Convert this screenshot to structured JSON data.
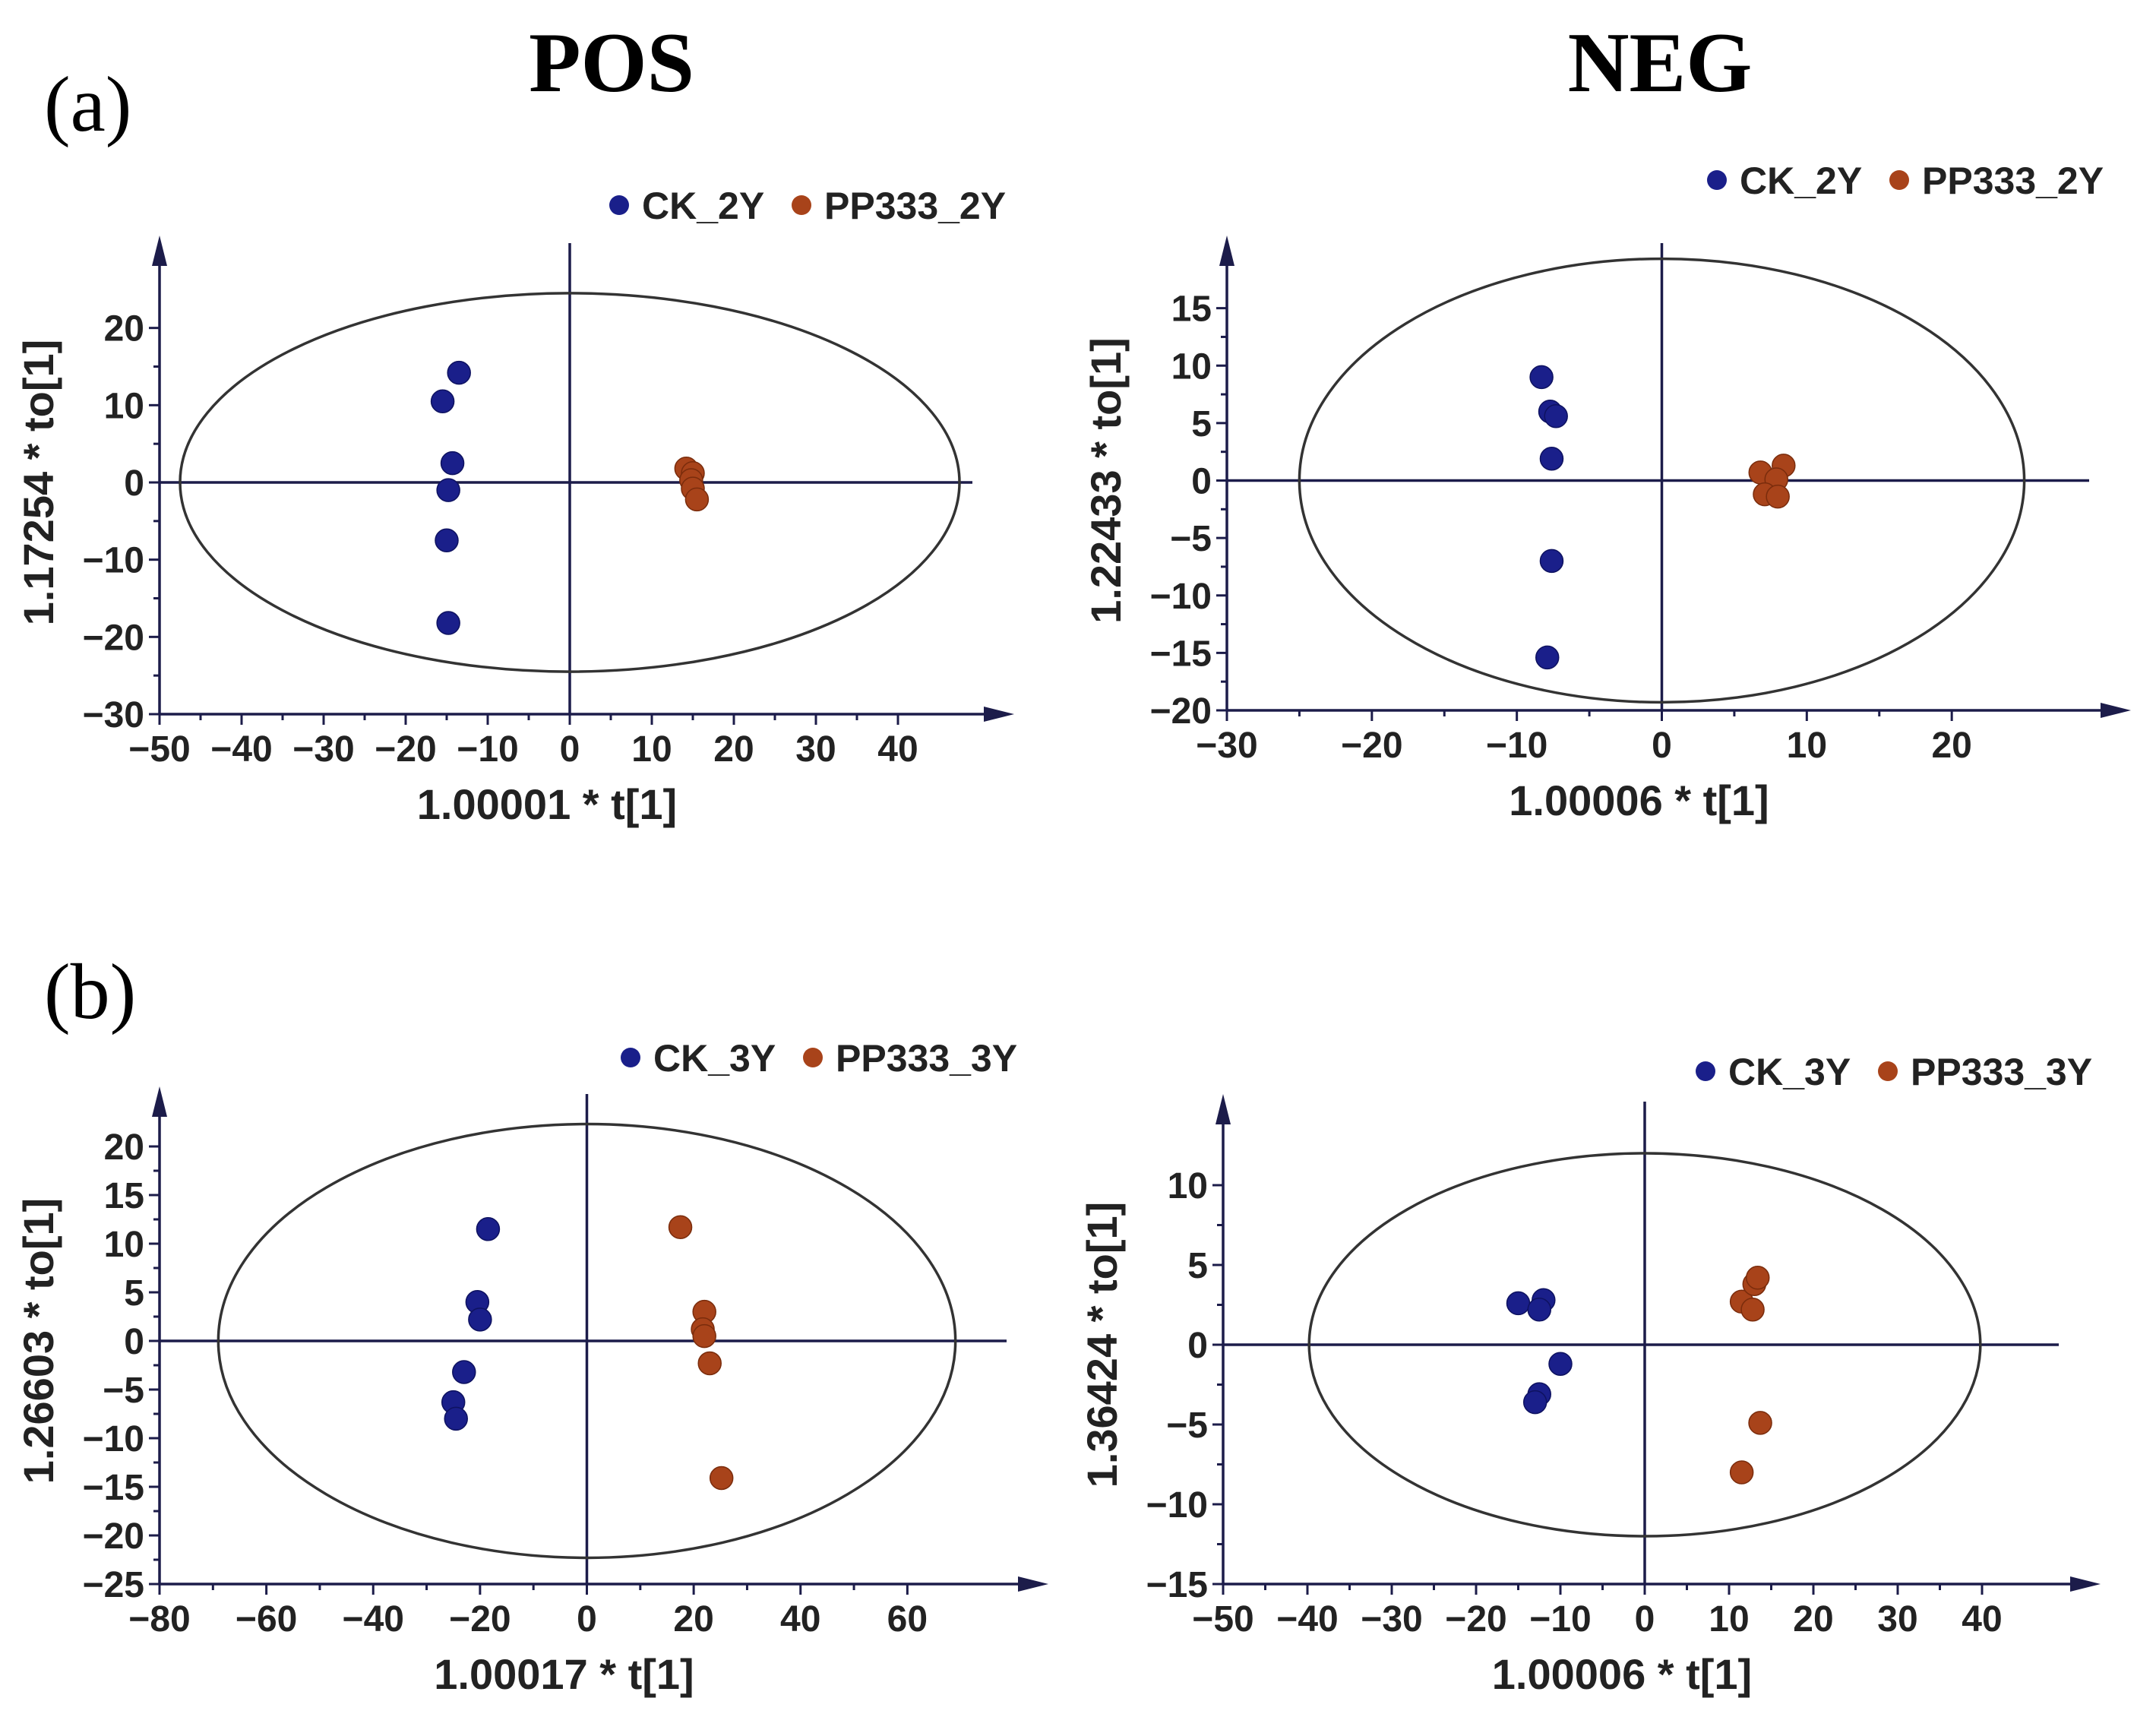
{
  "figure": {
    "column_titles": [
      "POS",
      "NEG"
    ],
    "panel_labels": [
      "(a)",
      "(b)"
    ]
  },
  "colors": {
    "CK": "#1a1f8a",
    "PP333": "#a8431a",
    "axis": "#1c1c4a"
  },
  "chart_data": [
    {
      "type": "scatter",
      "panel": "(a)",
      "mode": "POS",
      "xlabel": "1.00001 * t[1]",
      "ylabel": "1.17254 * to[1]",
      "xlim": [
        -50,
        50
      ],
      "ylim": [
        -30,
        30
      ],
      "xticks": [
        -50,
        -40,
        -30,
        -20,
        -10,
        0,
        10,
        20,
        30,
        40
      ],
      "yticks": [
        -30,
        -20,
        -10,
        0,
        10,
        20
      ],
      "ellipse": {
        "rx": 47.5,
        "ry": 24.5
      },
      "series": [
        {
          "name": "CK_2Y",
          "points": [
            [
              -13.5,
              14.2
            ],
            [
              -15.5,
              10.5
            ],
            [
              -14.3,
              2.5
            ],
            [
              -14.8,
              -1
            ],
            [
              -15,
              -7.5
            ],
            [
              -14.8,
              -18.2
            ]
          ]
        },
        {
          "name": "PP333_2Y",
          "points": [
            [
              14.2,
              1.8
            ],
            [
              15,
              1.2
            ],
            [
              14.8,
              0.3
            ],
            [
              15,
              -0.8
            ],
            [
              15.5,
              -2.2
            ]
          ]
        }
      ]
    },
    {
      "type": "scatter",
      "panel": "(a)",
      "mode": "NEG",
      "xlabel": "1.00006 * t[1]",
      "ylabel": "1.22433 * to[1]",
      "xlim": [
        -30,
        30
      ],
      "ylim": [
        -20,
        20
      ],
      "xticks": [
        -30,
        -20,
        -10,
        0,
        10,
        20
      ],
      "yticks": [
        -20,
        -15,
        -10,
        -5,
        0,
        5,
        10,
        15
      ],
      "ellipse": {
        "rx": 25,
        "ry": 19.3
      },
      "series": [
        {
          "name": "CK_2Y",
          "points": [
            [
              -8.3,
              9
            ],
            [
              -7.7,
              6
            ],
            [
              -7.3,
              5.6
            ],
            [
              -7.6,
              1.9
            ],
            [
              -7.6,
              -7
            ],
            [
              -7.9,
              -15.4
            ]
          ]
        },
        {
          "name": "PP333_2Y",
          "points": [
            [
              6.8,
              0.7
            ],
            [
              8.4,
              1.3
            ],
            [
              7.9,
              0.1
            ],
            [
              7.1,
              -1.2
            ],
            [
              8,
              -1.4
            ]
          ]
        }
      ]
    },
    {
      "type": "scatter",
      "panel": "(b)",
      "mode": "POS",
      "xlabel": "1.00017 * t[1]",
      "ylabel": "1.26603 * to[1]",
      "xlim": [
        -80,
        80
      ],
      "ylim": [
        -25,
        25
      ],
      "xticks": [
        -80,
        -60,
        -40,
        -20,
        0,
        20,
        40,
        60
      ],
      "yticks": [
        -25,
        -20,
        -15,
        -10,
        -5,
        0,
        5,
        10,
        15,
        20
      ],
      "ellipse": {
        "rx": 69,
        "ry": 22.3
      },
      "series": [
        {
          "name": "CK_3Y",
          "points": [
            [
              -18.5,
              11.5
            ],
            [
              -20.5,
              4
            ],
            [
              -20,
              2.2
            ],
            [
              -23,
              -3.2
            ],
            [
              -25,
              -6.3
            ],
            [
              -24.5,
              -8
            ]
          ]
        },
        {
          "name": "PP333_3Y",
          "points": [
            [
              17.5,
              11.7
            ],
            [
              22,
              3
            ],
            [
              21.7,
              1.2
            ],
            [
              22,
              0.5
            ],
            [
              23,
              -2.3
            ],
            [
              25.2,
              -14.1
            ]
          ]
        }
      ]
    },
    {
      "type": "scatter",
      "panel": "(b)",
      "mode": "NEG",
      "xlabel": "1.00006 * t[1]",
      "ylabel": "1.36424 * to[1]",
      "xlim": [
        -50,
        50
      ],
      "ylim": [
        -15,
        15
      ],
      "xticks": [
        -50,
        -40,
        -30,
        -20,
        -10,
        0,
        10,
        20,
        30,
        40
      ],
      "yticks": [
        -15,
        -10,
        -5,
        0,
        5,
        10
      ],
      "ellipse": {
        "rx": 39.8,
        "ry": 12
      },
      "series": [
        {
          "name": "CK_3Y",
          "points": [
            [
              -15,
              2.6
            ],
            [
              -12,
              2.8
            ],
            [
              -12.5,
              2.2
            ],
            [
              -10,
              -1.2
            ],
            [
              -12.5,
              -3.1
            ],
            [
              -13,
              -3.6
            ]
          ]
        },
        {
          "name": "PP333_3Y",
          "points": [
            [
              11.5,
              2.7
            ],
            [
              13,
              3.8
            ],
            [
              13.4,
              4.2
            ],
            [
              12.8,
              2.2
            ],
            [
              13.7,
              -4.9
            ],
            [
              11.5,
              -8
            ]
          ]
        }
      ]
    }
  ]
}
